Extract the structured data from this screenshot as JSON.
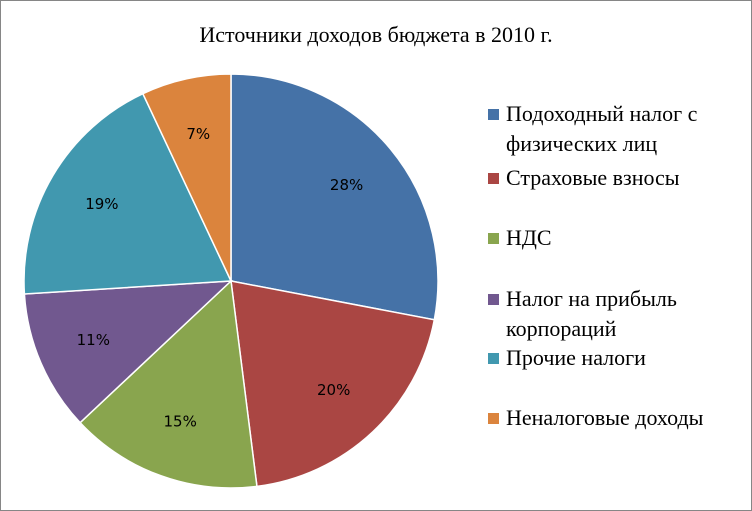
{
  "chart_data": {
    "type": "pie",
    "title": "Источники доходов бюджета в 2010  г.",
    "categories": [
      "Подоходный налог с физических лиц",
      "Страховые взносы",
      "НДС",
      "Налог на прибыль корпораций",
      "Прочие налоги",
      "Неналоговые доходы"
    ],
    "values": [
      28,
      20,
      15,
      11,
      19,
      7
    ],
    "labels": [
      "28%",
      "20%",
      "15%",
      "11%",
      "19%",
      "7%"
    ],
    "colors": [
      "#4572A7",
      "#AA4643",
      "#89A54E",
      "#71588F",
      "#4198AF",
      "#DB843D"
    ],
    "legend_position": "right"
  }
}
